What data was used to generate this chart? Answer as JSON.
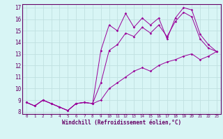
{
  "xlabel": "Windchill (Refroidissement éolien,°C)",
  "bg_color": "#d8f5f5",
  "grid_color": "#c0e0e0",
  "line_color": "#990099",
  "xlim": [
    -0.5,
    23.5
  ],
  "ylim": [
    7.8,
    17.3
  ],
  "xticks": [
    0,
    1,
    2,
    3,
    4,
    5,
    6,
    7,
    8,
    9,
    10,
    11,
    12,
    13,
    14,
    15,
    16,
    17,
    18,
    19,
    20,
    21,
    22,
    23
  ],
  "yticks": [
    8,
    9,
    10,
    11,
    12,
    13,
    14,
    15,
    16,
    17
  ],
  "line1_x": [
    0,
    1,
    2,
    3,
    4,
    5,
    6,
    7,
    8,
    9,
    10,
    11,
    12,
    13,
    14,
    15,
    16,
    17,
    18,
    19,
    20,
    21,
    22,
    23
  ],
  "line1_y": [
    8.8,
    8.5,
    9.0,
    8.7,
    8.4,
    8.1,
    8.7,
    8.8,
    8.7,
    13.3,
    15.5,
    15.0,
    16.5,
    15.3,
    16.1,
    15.5,
    16.1,
    14.3,
    16.1,
    17.0,
    16.8,
    14.7,
    13.8,
    13.2
  ],
  "line2_x": [
    0,
    1,
    2,
    3,
    4,
    5,
    6,
    7,
    8,
    9,
    10,
    11,
    12,
    13,
    14,
    15,
    16,
    17,
    18,
    19,
    20,
    21,
    22,
    23
  ],
  "line2_y": [
    8.8,
    8.5,
    9.0,
    8.7,
    8.4,
    8.1,
    8.7,
    8.8,
    8.7,
    10.5,
    13.3,
    13.8,
    14.8,
    14.5,
    15.3,
    14.8,
    15.5,
    14.5,
    15.8,
    16.6,
    16.2,
    14.3,
    13.5,
    13.2
  ],
  "line3_x": [
    0,
    1,
    2,
    3,
    4,
    5,
    6,
    7,
    8,
    9,
    10,
    11,
    12,
    13,
    14,
    15,
    16,
    17,
    18,
    19,
    20,
    21,
    22,
    23
  ],
  "line3_y": [
    8.8,
    8.5,
    9.0,
    8.7,
    8.4,
    8.1,
    8.7,
    8.8,
    8.7,
    9.0,
    10.0,
    10.5,
    11.0,
    11.5,
    11.8,
    11.5,
    12.0,
    12.3,
    12.5,
    12.8,
    13.0,
    12.5,
    12.8,
    13.2
  ]
}
